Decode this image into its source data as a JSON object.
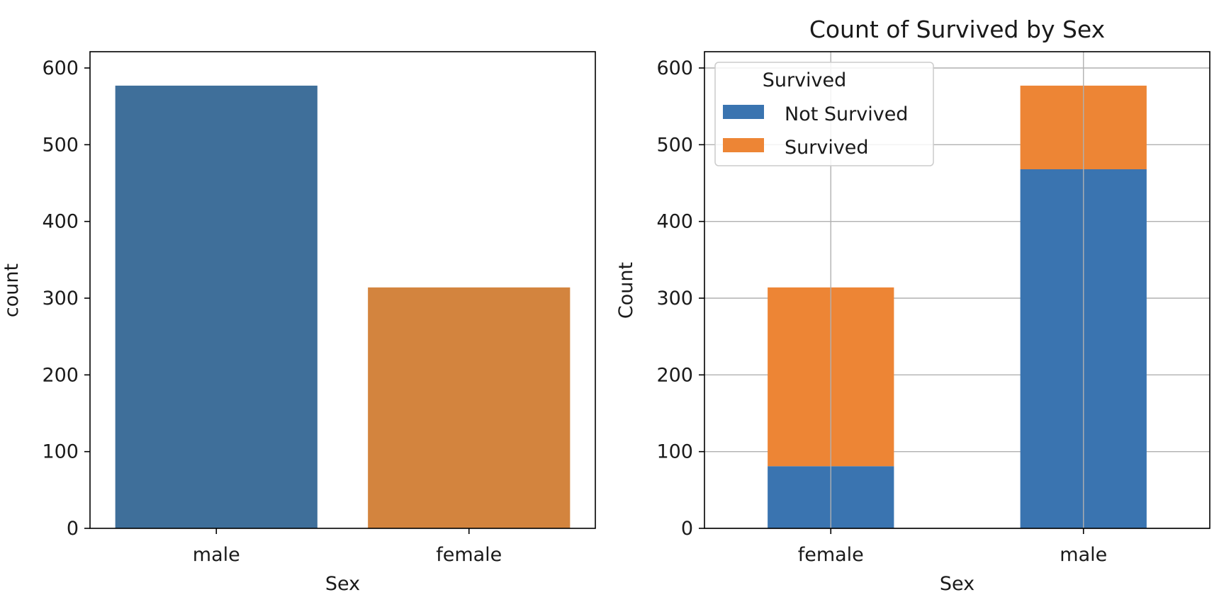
{
  "chart_data": [
    {
      "type": "bar",
      "title": "",
      "xlabel": "Sex",
      "ylabel": "count",
      "categories": [
        "male",
        "female"
      ],
      "values": [
        577,
        314
      ],
      "colors": [
        "#3f6f9a",
        "#d3843e"
      ],
      "ylim": [
        0,
        600
      ],
      "yticks": [
        0,
        100,
        200,
        300,
        400,
        500,
        600
      ],
      "grid": false
    },
    {
      "type": "bar",
      "stacked": true,
      "title": "Count of Survived by Sex",
      "xlabel": "Sex",
      "ylabel": "Count",
      "categories": [
        "female",
        "male"
      ],
      "series": [
        {
          "name": "Not Survived",
          "values": [
            81,
            468
          ],
          "color": "#3a74b0"
        },
        {
          "name": "Survived",
          "values": [
            233,
            109
          ],
          "color": "#ed8535"
        }
      ],
      "legend": {
        "title": "Survived",
        "placement": "top-left"
      },
      "ylim": [
        0,
        600
      ],
      "yticks": [
        0,
        100,
        200,
        300,
        400,
        500,
        600
      ],
      "grid": true
    }
  ]
}
